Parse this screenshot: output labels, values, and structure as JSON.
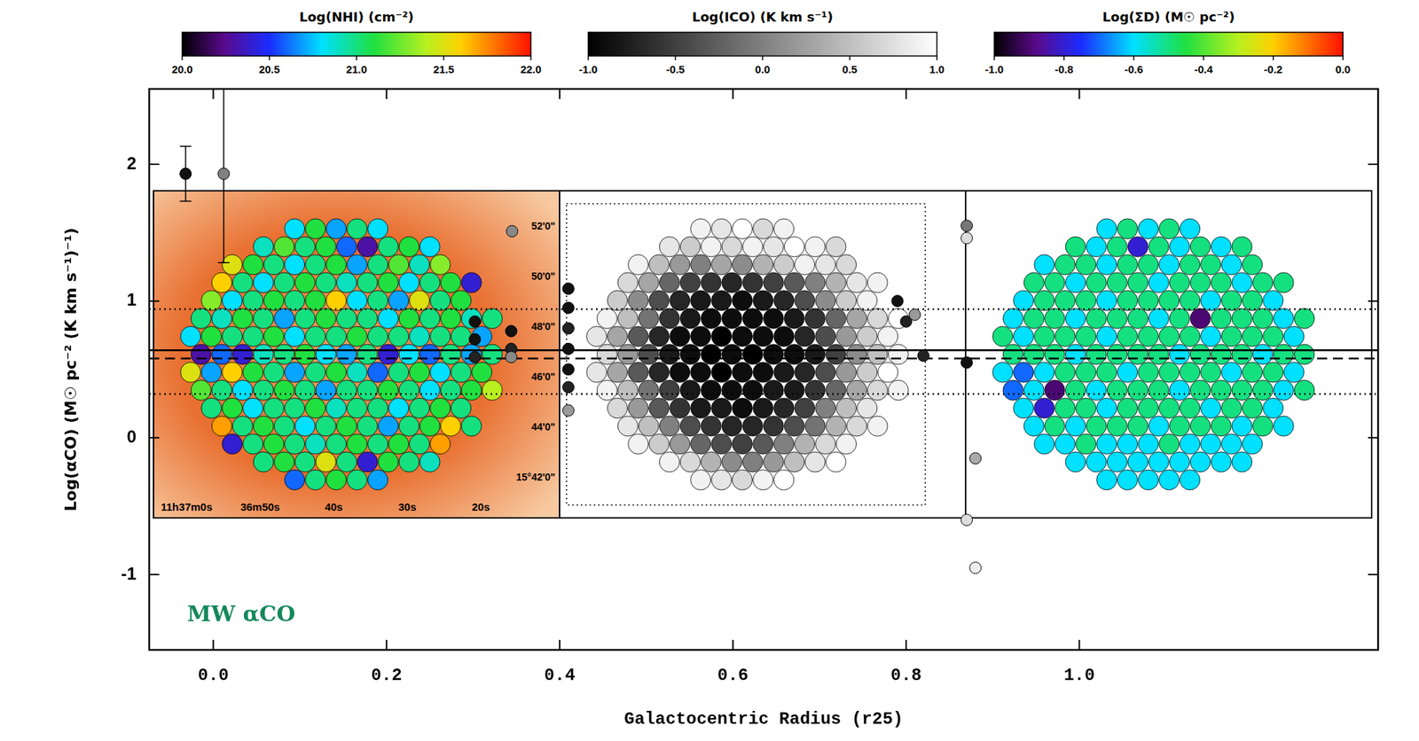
{
  "chart_data": [
    {
      "type": "scatter",
      "x_label": "Galactocentric Radius (r25)",
      "y_label": "Log(αCO) (M☉ pc⁻² (K km s⁻¹)⁻¹)",
      "xlim": [
        -0.074,
        1.345
      ],
      "ylim": [
        -1.55,
        2.55
      ],
      "xticks": [
        {
          "value": 0,
          "label": "0.0"
        },
        0.2,
        0.4,
        0.6,
        0.8,
        {
          "value": 1,
          "label": "1.0"
        }
      ],
      "yticks": [
        -1,
        0,
        1,
        2
      ],
      "grid": false,
      "marker": "circle",
      "x": [
        -0.032,
        0.012,
        0.302,
        0.302,
        0.302,
        0.344,
        0.344,
        0.344,
        0.345,
        0.41,
        0.41,
        0.41,
        0.41,
        0.41,
        0.41,
        0.41,
        0.79,
        0.8,
        0.81,
        0.82,
        0.87,
        0.87,
        0.87,
        0.88,
        0.87,
        0.88
      ],
      "y": [
        1.93,
        1.93,
        0.85,
        0.72,
        0.59,
        0.78,
        0.65,
        0.59,
        1.51,
        1.09,
        0.95,
        0.8,
        0.65,
        0.5,
        0.37,
        0.2,
        1.0,
        0.85,
        0.9,
        0.6,
        1.55,
        1.46,
        0.55,
        -0.15,
        -0.6,
        -0.95
      ],
      "colors": [
        "#111111",
        "#808080",
        "#111111",
        "#111111",
        "#222222",
        "#111111",
        "#222222",
        "#888888",
        "#888888",
        "#111111",
        "#111111",
        "#222222",
        "#111111",
        "#111111",
        "#222222",
        "#999999",
        "#111111",
        "#222222",
        "#999999",
        "#222222",
        "#777777",
        "#dddddd",
        "#111111",
        "#aaaaaa",
        "#dddddd",
        "#eeeeee"
      ],
      "y_errors": [
        0.2,
        0.65,
        null,
        null,
        null,
        null,
        null,
        null,
        null,
        null,
        null,
        null,
        null,
        null,
        null,
        null,
        null,
        null,
        null,
        null,
        null,
        null,
        null,
        null,
        null,
        null
      ],
      "hlines": [
        {
          "y": 0.64,
          "line_style": "solid"
        },
        {
          "y": 0.58,
          "line_style": "dashed"
        },
        {
          "y": 0.94,
          "line_style": "dotted"
        },
        {
          "y": 0.32,
          "line_style": "dotted"
        }
      ],
      "annotations": [
        {
          "text": "MW αCO",
          "x": -0.03,
          "y": -1.3,
          "color": "#15885a"
        }
      ]
    },
    {
      "type": "heatmap",
      "colorbar": {
        "label": "Log(NHI) (cm⁻²)",
        "range": [
          20.0,
          22.0
        ],
        "ticks": [
          {
            "value": 20,
            "label": "20.0"
          },
          20.5,
          {
            "value": 21,
            "label": "21.0"
          },
          21.5,
          {
            "value": 22,
            "label": "22.0"
          }
        ]
      },
      "xlim": [
        64.5,
        9.3
      ],
      "xticks": [
        {
          "value": 60,
          "label": "11h37m0s"
        },
        {
          "value": 50,
          "label": "36m50s"
        },
        {
          "value": 40,
          "label": "40s"
        },
        {
          "value": 30,
          "label": "30s"
        },
        {
          "value": 20,
          "label": "20s"
        }
      ],
      "ylim": [
        0.37,
        13.41
      ],
      "yticks": [
        {
          "value": 12,
          "label": "52'0\""
        },
        {
          "value": 10,
          "label": "50'0\""
        },
        {
          "value": 8,
          "label": "48'0\""
        },
        {
          "value": 6,
          "label": "46'0\""
        },
        {
          "value": 4,
          "label": "44'0\""
        },
        {
          "value": 2,
          "label": "15°42'0\""
        }
      ],
      "cells": [
        [
          20.8,
          21.1,
          20.7,
          21.0,
          20.8
        ],
        [
          20.9,
          21.2,
          21.0,
          21.1,
          20.6,
          20.3,
          21.0,
          21.1,
          20.8
        ],
        [
          21.5,
          21.1,
          21.0,
          20.8,
          21.0,
          21.1,
          20.7,
          21.0,
          21.2,
          20.9,
          21.3
        ],
        [
          21.6,
          21.0,
          20.8,
          21.0,
          21.1,
          21.0,
          20.9,
          21.0,
          21.1,
          20.8,
          21.0,
          21.1,
          20.4
        ],
        [
          21.3,
          20.8,
          21.0,
          21.1,
          21.0,
          21.1,
          21.6,
          20.8,
          21.0,
          20.7,
          21.5,
          21.0,
          21.1
        ],
        [
          21.0,
          20.9,
          21.1,
          21.0,
          20.7,
          21.0,
          21.1,
          21.0,
          21.0,
          20.8,
          21.1,
          21.0,
          21.1,
          20.9,
          21.0
        ],
        [
          20.8,
          21.1,
          21.0,
          21.0,
          21.1,
          20.8,
          21.0,
          21.0,
          21.1,
          21.0,
          21.0,
          20.9,
          21.0,
          21.0,
          20.7
        ],
        [
          20.3,
          20.6,
          20.4,
          20.9,
          21.0,
          21.1,
          20.8,
          20.7,
          21.0,
          20.4,
          20.8,
          20.6,
          21.0,
          20.7,
          21.0
        ],
        [
          21.5,
          20.7,
          21.6,
          21.1,
          21.0,
          20.7,
          21.0,
          21.1,
          20.9,
          20.6,
          21.0,
          21.1,
          20.8,
          21.0,
          21.1
        ],
        [
          21.2,
          21.0,
          20.8,
          21.0,
          21.1,
          21.0,
          20.7,
          21.0,
          21.0,
          21.1,
          21.0,
          20.8,
          21.0,
          21.1,
          21.4
        ],
        [
          21.0,
          21.1,
          20.8,
          21.0,
          21.0,
          21.1,
          20.9,
          21.0,
          21.0,
          20.8,
          21.0,
          21.1,
          21.0
        ],
        [
          21.7,
          21.0,
          21.1,
          21.0,
          20.8,
          21.0,
          21.1,
          21.0,
          20.7,
          21.0,
          21.1,
          21.6,
          21.0
        ],
        [
          20.4,
          21.0,
          21.1,
          21.0,
          20.9,
          21.0,
          21.1,
          21.0,
          21.1,
          21.0,
          21.7
        ],
        [
          21.0,
          21.1,
          21.0,
          21.5,
          21.0,
          20.4,
          21.1,
          21.0,
          20.9
        ],
        [
          20.6,
          21.0,
          21.1,
          21.0,
          20.7
        ]
      ]
    },
    {
      "type": "heatmap",
      "colorbar": {
        "label": "Log(ICO) (K km s⁻¹)",
        "range": [
          -1.0,
          1.0
        ],
        "ticks": [
          {
            "value": -1,
            "label": "-1.0"
          },
          -0.5,
          {
            "value": 0,
            "label": "0.0"
          },
          0.5,
          {
            "value": 1,
            "label": "1.0"
          }
        ]
      },
      "cells": [
        [
          0.9,
          0.8,
          1.0,
          0.7,
          0.9
        ],
        [
          0.8,
          0.6,
          0.9,
          0.7,
          0.9,
          0.8,
          1.0,
          0.9,
          0.7
        ],
        [
          0.9,
          0.5,
          0.2,
          0.0,
          0.3,
          0.1,
          0.4,
          0.6,
          0.9,
          0.8,
          0.7
        ],
        [
          0.7,
          0.3,
          -0.2,
          -0.5,
          -0.6,
          -0.7,
          -0.6,
          -0.5,
          -0.3,
          0.0,
          0.4,
          0.8,
          0.9
        ],
        [
          0.6,
          0.1,
          -0.4,
          -0.7,
          -0.8,
          -0.8,
          -0.9,
          -0.8,
          -0.7,
          -0.4,
          0.1,
          0.6,
          0.9
        ],
        [
          0.9,
          0.5,
          -0.1,
          -0.6,
          -0.8,
          -0.9,
          -0.9,
          -0.9,
          -0.9,
          -0.8,
          -0.6,
          -0.2,
          0.3,
          0.7,
          1.0
        ],
        [
          0.8,
          0.3,
          -0.3,
          -0.7,
          -0.9,
          -0.9,
          -1.0,
          -0.9,
          -0.9,
          -0.9,
          -0.7,
          -0.4,
          0.2,
          0.6,
          0.9
        ],
        [
          0.7,
          0.2,
          -0.4,
          -0.8,
          -0.9,
          -1.0,
          -0.9,
          -1.0,
          -0.9,
          -0.9,
          -0.8,
          -0.5,
          0.1,
          0.5,
          0.9
        ],
        [
          0.8,
          0.3,
          -0.3,
          -0.7,
          -0.9,
          -0.9,
          -1.0,
          -0.9,
          -0.9,
          -0.8,
          -0.7,
          -0.4,
          0.2,
          0.6,
          1.0
        ],
        [
          0.9,
          0.5,
          -0.1,
          -0.5,
          -0.8,
          -0.9,
          -0.9,
          -0.9,
          -0.8,
          -0.8,
          -0.6,
          -0.2,
          0.3,
          0.7,
          0.9
        ],
        [
          0.7,
          0.2,
          -0.3,
          -0.6,
          -0.8,
          -0.8,
          -0.9,
          -0.8,
          -0.7,
          -0.5,
          0.0,
          0.5,
          0.8
        ],
        [
          0.8,
          0.5,
          0.0,
          -0.4,
          -0.6,
          -0.7,
          -0.7,
          -0.6,
          -0.4,
          -0.1,
          0.4,
          0.7,
          0.9
        ],
        [
          0.9,
          0.6,
          0.2,
          -0.2,
          -0.4,
          -0.5,
          -0.3,
          0.0,
          0.4,
          0.7,
          0.9
        ],
        [
          0.9,
          0.7,
          0.4,
          0.1,
          0.0,
          0.2,
          0.5,
          0.8,
          1.0
        ],
        [
          0.9,
          0.8,
          0.7,
          0.9,
          1.0
        ]
      ]
    },
    {
      "type": "heatmap",
      "colorbar": {
        "label": "Log(ΣD) (M☉ pc⁻²)",
        "range": [
          -1.0,
          0.0
        ],
        "ticks": [
          {
            "value": -1,
            "label": "-1.0"
          },
          -0.8,
          -0.6,
          -0.4,
          -0.2,
          {
            "value": 0,
            "label": "0.0"
          }
        ]
      },
      "cells": [
        [
          -0.6,
          -0.5,
          -0.6,
          -0.5,
          -0.6
        ],
        [
          -0.5,
          -0.6,
          -0.5,
          -0.8,
          -0.5,
          -0.6,
          -0.5,
          -0.6,
          -0.5
        ],
        [
          -0.6,
          -0.5,
          -0.5,
          -0.6,
          -0.5,
          -0.5,
          -0.6,
          -0.5,
          -0.5,
          -0.6,
          -0.5
        ],
        [
          -0.5,
          -0.5,
          -0.6,
          -0.5,
          -0.5,
          -0.5,
          -0.6,
          -0.5,
          -0.5,
          -0.5,
          -0.6,
          -0.5,
          -0.5
        ],
        [
          -0.6,
          -0.5,
          -0.5,
          -0.5,
          -0.6,
          -0.5,
          -0.5,
          -0.5,
          -0.5,
          -0.6,
          -0.5,
          -0.5,
          -0.6
        ],
        [
          -0.6,
          -0.5,
          -0.5,
          -0.6,
          -0.5,
          -0.5,
          -0.5,
          -0.6,
          -0.5,
          -0.9,
          -0.5,
          -0.5,
          -0.5,
          -0.6,
          -0.5
        ],
        [
          -0.5,
          -0.6,
          -0.5,
          -0.5,
          -0.5,
          -0.6,
          -0.5,
          -0.5,
          -0.5,
          -0.5,
          -0.6,
          -0.5,
          -0.5,
          -0.5,
          -0.6
        ],
        [
          -0.5,
          -0.5,
          -0.5,
          -0.6,
          -0.5,
          -0.5,
          -0.5,
          -0.5,
          -0.6,
          -0.5,
          -0.5,
          -0.5,
          -0.6,
          -0.5,
          -0.5
        ],
        [
          -0.6,
          -0.7,
          -0.6,
          -0.5,
          -0.5,
          -0.5,
          -0.6,
          -0.5,
          -0.5,
          -0.5,
          -0.5,
          -0.6,
          -0.5,
          -0.5,
          -0.6
        ],
        [
          -0.7,
          -0.6,
          -0.9,
          -0.5,
          -0.6,
          -0.5,
          -0.5,
          -0.5,
          -0.6,
          -0.5,
          -0.5,
          -0.5,
          -0.5,
          -0.6,
          -0.5
        ],
        [
          -0.6,
          -0.8,
          -0.5,
          -0.5,
          -0.6,
          -0.5,
          -0.5,
          -0.5,
          -0.5,
          -0.6,
          -0.5,
          -0.5,
          -0.6
        ],
        [
          -0.6,
          -0.5,
          -0.6,
          -0.5,
          -0.5,
          -0.5,
          -0.6,
          -0.5,
          -0.5,
          -0.5,
          -0.6,
          -0.5,
          -0.6
        ],
        [
          -0.6,
          -0.6,
          -0.5,
          -0.6,
          -0.6,
          -0.6,
          -0.5,
          -0.6,
          -0.6,
          -0.6,
          -0.6
        ],
        [
          -0.6,
          -0.6,
          -0.6,
          -0.6,
          -0.6,
          -0.6,
          -0.6,
          -0.6,
          -0.6
        ],
        [
          -0.6,
          -0.6,
          -0.6,
          -0.6,
          -0.6
        ]
      ]
    }
  ]
}
